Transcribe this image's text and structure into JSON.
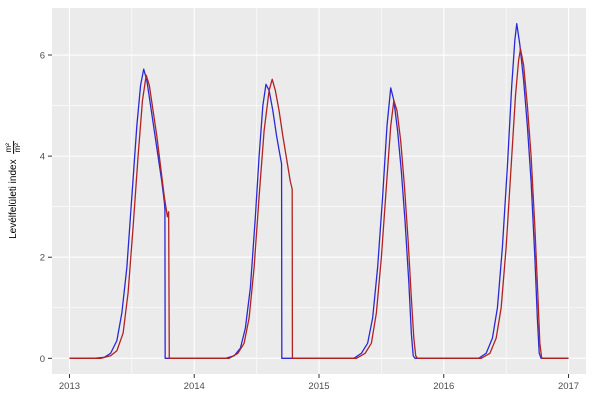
{
  "chart_data": {
    "type": "line",
    "title": "",
    "xlabel": "",
    "ylabel": "Levélfelületi index",
    "unit_numerator": "m²",
    "unit_denominator": "m²",
    "xlim": [
      2012.86,
      2017.14
    ],
    "ylim": [
      -0.31,
      6.93
    ],
    "grid": true,
    "legend_position": "none",
    "panel_background": "#EBEBEB",
    "gridline_color": "#FFFFFF",
    "tick_label_color": "#4D4D4D",
    "x_ticks": [
      {
        "value": 2013,
        "label": "2013"
      },
      {
        "value": 2014,
        "label": "2014"
      },
      {
        "value": 2015,
        "label": "2015"
      },
      {
        "value": 2016,
        "label": "2016"
      },
      {
        "value": 2017,
        "label": "2017"
      }
    ],
    "y_ticks": [
      {
        "value": 0,
        "label": "0"
      },
      {
        "value": 2,
        "label": "2"
      },
      {
        "value": 4,
        "label": "4"
      },
      {
        "value": 6,
        "label": "6"
      }
    ],
    "x_minor": [
      2013.5,
      2014.5,
      2015.5,
      2016.5
    ],
    "y_minor": [
      1,
      3,
      5
    ],
    "series": [
      {
        "id": "series-1",
        "color": "#2A2AD4",
        "points": [
          [
            2013.0,
            0
          ],
          [
            2013.2,
            0
          ],
          [
            2013.28,
            0.02
          ],
          [
            2013.33,
            0.1
          ],
          [
            2013.38,
            0.35
          ],
          [
            2013.42,
            0.9
          ],
          [
            2013.46,
            1.8
          ],
          [
            2013.5,
            3.2
          ],
          [
            2013.54,
            4.6
          ],
          [
            2013.57,
            5.4
          ],
          [
            2013.595,
            5.72
          ],
          [
            2013.62,
            5.5
          ],
          [
            2013.65,
            5.0
          ],
          [
            2013.68,
            4.5
          ],
          [
            2013.71,
            4.0
          ],
          [
            2013.74,
            3.5
          ],
          [
            2013.76,
            3.1
          ],
          [
            2013.765,
            2.95
          ],
          [
            2013.767,
            0
          ],
          [
            2014.0,
            0
          ],
          [
            2014.25,
            0
          ],
          [
            2014.32,
            0.05
          ],
          [
            2014.37,
            0.2
          ],
          [
            2014.41,
            0.6
          ],
          [
            2014.45,
            1.4
          ],
          [
            2014.49,
            2.8
          ],
          [
            2014.52,
            4.0
          ],
          [
            2014.55,
            5.0
          ],
          [
            2014.575,
            5.42
          ],
          [
            2014.6,
            5.3
          ],
          [
            2014.63,
            4.9
          ],
          [
            2014.66,
            4.4
          ],
          [
            2014.685,
            4.05
          ],
          [
            2014.7,
            3.85
          ],
          [
            2014.702,
            0
          ],
          [
            2015.0,
            0
          ],
          [
            2015.28,
            0
          ],
          [
            2015.34,
            0.1
          ],
          [
            2015.39,
            0.3
          ],
          [
            2015.43,
            0.8
          ],
          [
            2015.47,
            1.8
          ],
          [
            2015.51,
            3.2
          ],
          [
            2015.545,
            4.6
          ],
          [
            2015.575,
            5.35
          ],
          [
            2015.6,
            5.1
          ],
          [
            2015.63,
            4.5
          ],
          [
            2015.66,
            3.7
          ],
          [
            2015.69,
            2.7
          ],
          [
            2015.72,
            1.5
          ],
          [
            2015.74,
            0.5
          ],
          [
            2015.755,
            0.05
          ],
          [
            2015.77,
            0
          ],
          [
            2016.0,
            0
          ],
          [
            2016.28,
            0
          ],
          [
            2016.34,
            0.1
          ],
          [
            2016.39,
            0.4
          ],
          [
            2016.43,
            1.0
          ],
          [
            2016.47,
            2.2
          ],
          [
            2016.51,
            3.8
          ],
          [
            2016.545,
            5.4
          ],
          [
            2016.57,
            6.3
          ],
          [
            2016.585,
            6.62
          ],
          [
            2016.61,
            6.2
          ],
          [
            2016.64,
            5.5
          ],
          [
            2016.67,
            4.6
          ],
          [
            2016.7,
            3.5
          ],
          [
            2016.73,
            2.0
          ],
          [
            2016.75,
            0.8
          ],
          [
            2016.765,
            0.1
          ],
          [
            2016.78,
            0
          ],
          [
            2017.0,
            0
          ]
        ]
      },
      {
        "id": "series-2",
        "color": "#B22222",
        "points": [
          [
            2013.0,
            0
          ],
          [
            2013.25,
            0
          ],
          [
            2013.33,
            0.05
          ],
          [
            2013.38,
            0.15
          ],
          [
            2013.43,
            0.5
          ],
          [
            2013.47,
            1.3
          ],
          [
            2013.51,
            2.6
          ],
          [
            2013.55,
            4.0
          ],
          [
            2013.585,
            5.1
          ],
          [
            2013.615,
            5.6
          ],
          [
            2013.64,
            5.4
          ],
          [
            2013.67,
            4.9
          ],
          [
            2013.7,
            4.4
          ],
          [
            2013.73,
            3.8
          ],
          [
            2013.76,
            3.2
          ],
          [
            2013.785,
            2.8
          ],
          [
            2013.795,
            2.9
          ],
          [
            2013.8,
            0
          ],
          [
            2014.0,
            0
          ],
          [
            2014.28,
            0
          ],
          [
            2014.35,
            0.1
          ],
          [
            2014.4,
            0.3
          ],
          [
            2014.44,
            0.8
          ],
          [
            2014.48,
            1.8
          ],
          [
            2014.52,
            3.2
          ],
          [
            2014.56,
            4.5
          ],
          [
            2014.6,
            5.3
          ],
          [
            2014.625,
            5.52
          ],
          [
            2014.65,
            5.3
          ],
          [
            2014.68,
            4.9
          ],
          [
            2014.71,
            4.4
          ],
          [
            2014.74,
            3.95
          ],
          [
            2014.77,
            3.5
          ],
          [
            2014.785,
            3.35
          ],
          [
            2014.787,
            0
          ],
          [
            2015.0,
            0
          ],
          [
            2015.3,
            0
          ],
          [
            2015.37,
            0.1
          ],
          [
            2015.42,
            0.3
          ],
          [
            2015.46,
            0.9
          ],
          [
            2015.5,
            2.0
          ],
          [
            2015.54,
            3.4
          ],
          [
            2015.575,
            4.6
          ],
          [
            2015.6,
            5.1
          ],
          [
            2015.625,
            4.9
          ],
          [
            2015.655,
            4.3
          ],
          [
            2015.685,
            3.4
          ],
          [
            2015.715,
            2.3
          ],
          [
            2015.74,
            1.2
          ],
          [
            2015.76,
            0.4
          ],
          [
            2015.775,
            0.05
          ],
          [
            2015.79,
            0
          ],
          [
            2016.0,
            0
          ],
          [
            2016.3,
            0
          ],
          [
            2016.37,
            0.1
          ],
          [
            2016.42,
            0.4
          ],
          [
            2016.46,
            1.0
          ],
          [
            2016.5,
            2.2
          ],
          [
            2016.54,
            3.8
          ],
          [
            2016.575,
            5.2
          ],
          [
            2016.6,
            5.9
          ],
          [
            2016.615,
            6.12
          ],
          [
            2016.64,
            5.8
          ],
          [
            2016.67,
            5.0
          ],
          [
            2016.7,
            4.0
          ],
          [
            2016.73,
            2.6
          ],
          [
            2016.755,
            1.2
          ],
          [
            2016.77,
            0.3
          ],
          [
            2016.785,
            0
          ],
          [
            2017.0,
            0
          ]
        ]
      }
    ]
  }
}
